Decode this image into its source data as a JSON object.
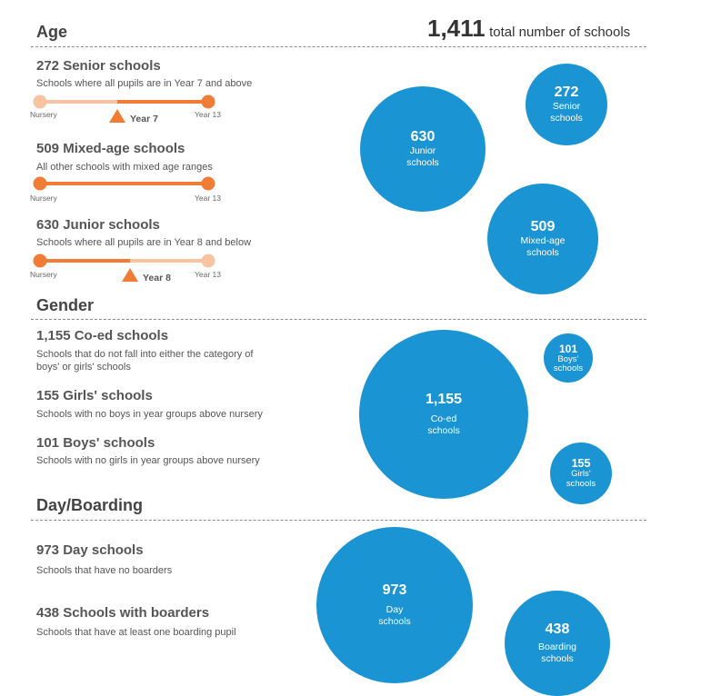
{
  "header": {
    "total": "1,411",
    "total_label": "total number of schools"
  },
  "sections": {
    "age": "Age",
    "gender": "Gender",
    "boarding": "Day/Boarding"
  },
  "age": {
    "senior": {
      "title": "272 Senior schools",
      "desc": "Schools where all pupils are in Year 7 and above"
    },
    "mixed": {
      "title": "509 Mixed-age schools",
      "desc": "All other schools with mixed age ranges"
    },
    "junior": {
      "title": "630 Junior schools",
      "desc": "Schools where all pupils are in Year 8 and below"
    },
    "scale_start": "Nursery",
    "scale_end": "Year 13",
    "marker_senior": "Year 7",
    "marker_junior": "Year 8"
  },
  "gender": {
    "coed": {
      "title": "1,155 Co-ed schools",
      "desc": "Schools that do not fall into either the category of boys' or girls' schools"
    },
    "girls": {
      "title": "155 Girls' schools",
      "desc": "Schools with no boys in year groups above nursery"
    },
    "boys": {
      "title": "101 Boys' schools",
      "desc": "Schools with no girls in year groups above nursery"
    }
  },
  "boarding": {
    "day": {
      "title": "973 Day schools",
      "desc": "Schools that have no boarders"
    },
    "boarders": {
      "title": "438 Schools with boarders",
      "desc": "Schools that have at least one boarding pupil"
    }
  },
  "colors": {
    "bubble": "#1b94d3",
    "scale_dark": "#f07c35",
    "scale_light": "#f8c3a0"
  },
  "chart_data": [
    {
      "type": "bubble",
      "title": "Age",
      "categories": [
        "Senior schools",
        "Junior schools",
        "Mixed-age schools"
      ],
      "values": [
        272,
        630,
        509
      ],
      "labels": [
        "272",
        "630",
        "509"
      ]
    },
    {
      "type": "bubble",
      "title": "Gender",
      "categories": [
        "Co-ed",
        "Boys' schools",
        "Girls' schools"
      ],
      "values": [
        1155,
        101,
        155
      ],
      "labels": [
        "1,155",
        "101",
        "155"
      ]
    },
    {
      "type": "bubble",
      "title": "Day/Boarding",
      "categories": [
        "Day schools",
        "Boarding schools"
      ],
      "values": [
        973,
        438
      ],
      "labels": [
        "973",
        "438"
      ]
    }
  ]
}
